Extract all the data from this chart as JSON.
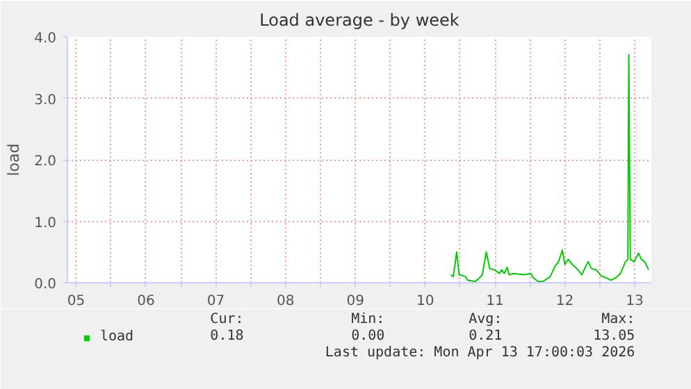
{
  "chart_data": {
    "type": "line",
    "title": "Load average - by week",
    "ylabel": "load",
    "x": [
      10.868,
      10.903,
      10.951,
      10.986,
      11.076,
      11.111,
      11.215,
      11.271,
      11.319,
      11.375,
      11.424,
      11.493,
      11.563,
      11.597,
      11.632,
      11.674,
      11.701,
      11.771,
      11.91,
      12.014,
      12.049,
      12.118,
      12.188,
      12.292,
      12.361,
      12.41,
      12.465,
      12.5,
      12.549,
      12.604,
      12.674,
      12.743,
      12.833,
      12.882,
      12.951,
      13.021,
      13.09,
      13.16,
      13.229,
      13.299,
      13.368,
      13.403,
      13.417,
      13.438,
      13.493,
      13.556,
      13.597,
      13.646,
      13.701
    ],
    "series": [
      {
        "name": "load",
        "color": "#00cc00",
        "values": [
          0.13,
          0.1,
          0.5,
          0.13,
          0.1,
          0.04,
          0.02,
          0.07,
          0.13,
          0.5,
          0.23,
          0.21,
          0.15,
          0.21,
          0.15,
          0.25,
          0.13,
          0.15,
          0.13,
          0.15,
          0.08,
          0.02,
          0.02,
          0.1,
          0.27,
          0.34,
          0.53,
          0.3,
          0.38,
          0.3,
          0.23,
          0.13,
          0.34,
          0.23,
          0.21,
          0.11,
          0.08,
          0.04,
          0.08,
          0.15,
          0.34,
          0.38,
          3.71,
          0.38,
          0.34,
          0.48,
          0.38,
          0.34,
          0.21
        ]
      }
    ],
    "xlim": [
      5.375,
      13.74
    ],
    "xticks": [
      {
        "value": 5.5,
        "label": "05"
      },
      {
        "value": 6,
        "label": null
      },
      {
        "value": 6.5,
        "label": "06"
      },
      {
        "value": 7,
        "label": null
      },
      {
        "value": 7.5,
        "label": "07"
      },
      {
        "value": 8,
        "label": null
      },
      {
        "value": 8.5,
        "label": "08"
      },
      {
        "value": 9,
        "label": null
      },
      {
        "value": 9.5,
        "label": "09"
      },
      {
        "value": 10,
        "label": null
      },
      {
        "value": 10.5,
        "label": "10"
      },
      {
        "value": 11,
        "label": null
      },
      {
        "value": 11.5,
        "label": "11"
      },
      {
        "value": 12,
        "label": null
      },
      {
        "value": 12.5,
        "label": "12"
      },
      {
        "value": 13,
        "label": null
      },
      {
        "value": 13.5,
        "label": "13"
      }
    ],
    "ylim": [
      0,
      4.0
    ],
    "yticks": [
      {
        "value": 0,
        "label": "0.0"
      },
      {
        "value": 1,
        "label": "1.0"
      },
      {
        "value": 2,
        "label": "2.0"
      },
      {
        "value": 3,
        "label": "3.0"
      },
      {
        "value": 4,
        "label": "4.0"
      }
    ],
    "grid": true,
    "legend": "bottom",
    "marker": "none",
    "line_style": "solid",
    "annotations": [
      "Cur:",
      "Min:",
      "Avg:",
      "Max:",
      "0.18",
      "0.00",
      "0.21",
      "13.05",
      "Last update: Mon Apr 13 17:00:03 2026"
    ]
  }
}
